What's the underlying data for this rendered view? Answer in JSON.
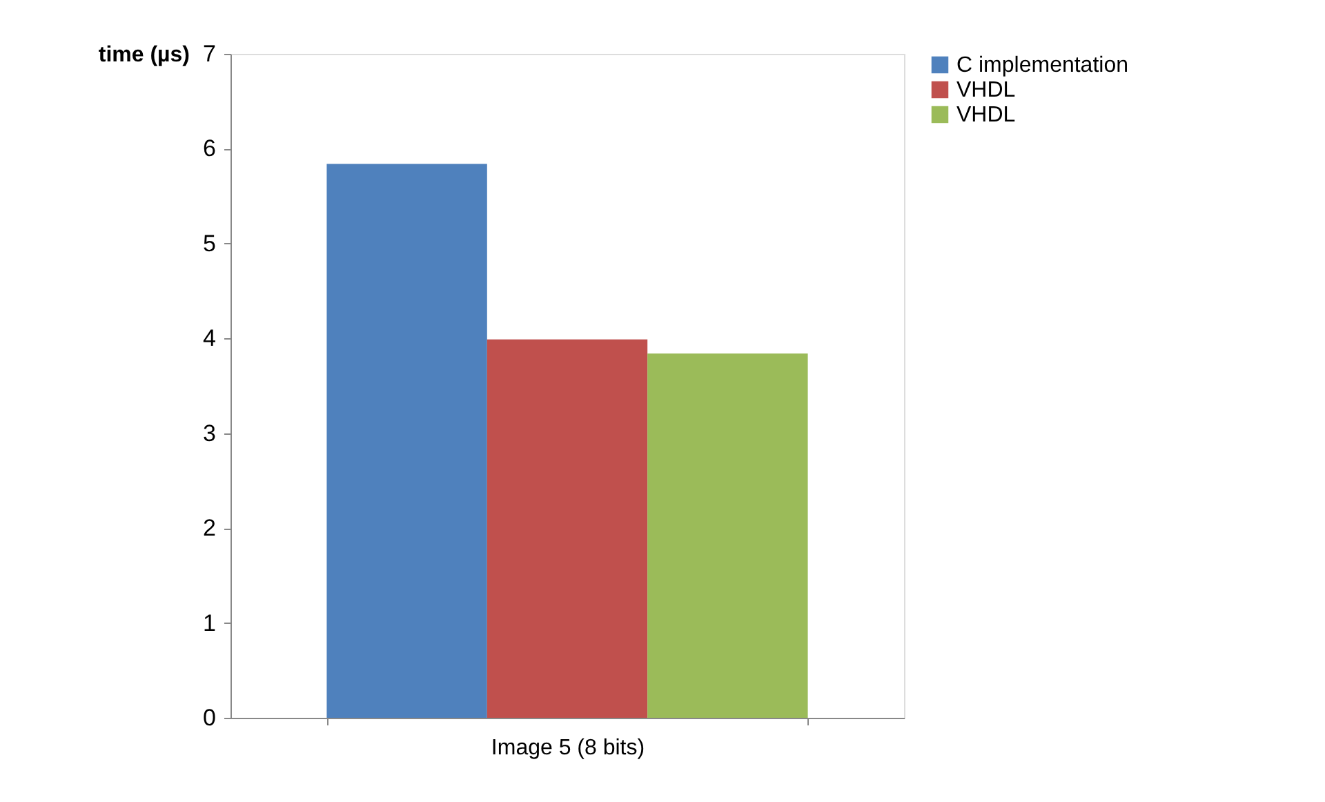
{
  "chart_data": {
    "type": "bar",
    "ylabel": "time (µs)",
    "categories": [
      "Image 5 (8 bits)"
    ],
    "series": [
      {
        "name": "C implementation",
        "color": "#4f81bd",
        "values": [
          5.84
        ]
      },
      {
        "name": "VHDL",
        "color": "#c0504d",
        "values": [
          3.99
        ]
      },
      {
        "name": "VHDL",
        "color": "#9bbb59",
        "values": [
          3.84
        ]
      }
    ],
    "ylim": [
      0,
      7
    ],
    "yticks": [
      0,
      1,
      2,
      3,
      4,
      5,
      6,
      7
    ],
    "grid": false,
    "legend": "right"
  }
}
